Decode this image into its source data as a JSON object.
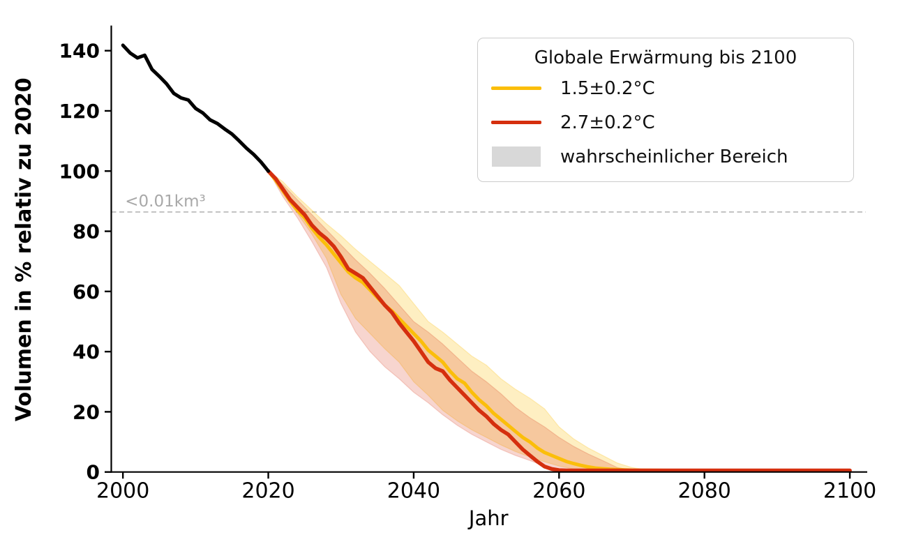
{
  "figure": {
    "xlabel": "Jahr",
    "ylabel": "Volumen in % relativ zu 2020",
    "background": "#ffffff",
    "axis_color": "#000000"
  },
  "legend": {
    "title": "Globale Erwärmung bis 2100",
    "entries": [
      {
        "label": "1.5±0.2°C",
        "swatch": "line",
        "color": "#fbbe0a"
      },
      {
        "label": "2.7±0.2°C",
        "swatch": "line",
        "color": "#d52f0e"
      },
      {
        "label": "wahrscheinlicher Bereich",
        "swatch": "patch",
        "color": "#d8d8d8"
      }
    ]
  },
  "chart_data": {
    "type": "line",
    "title": "",
    "xlabel": "Jahr",
    "ylabel": "Volumen in % relativ zu 2020",
    "xlim": [
      1998.4,
      2102.2
    ],
    "ylim": [
      0,
      147.9
    ],
    "x_ticks": [
      2000,
      2020,
      2040,
      2060,
      2080,
      2100
    ],
    "y_ticks": [
      0,
      20,
      40,
      60,
      80,
      100,
      120,
      140
    ],
    "grid": false,
    "legend_title": "Globale Erwärmung bis 2100",
    "legend_position": "upper right",
    "threshold": {
      "value": 86.4,
      "label": "<0.01km³",
      "label_color": "#a8a8a8",
      "line_color": "#b5b5b5"
    },
    "series": [
      {
        "id": "historical",
        "color": "#000000",
        "width": 5,
        "x": [
          2000,
          2001,
          2002,
          2003,
          2004,
          2005,
          2006,
          2007,
          2008,
          2009,
          2010,
          2011,
          2012,
          2013,
          2014,
          2015,
          2016,
          2017,
          2018,
          2019,
          2020
        ],
        "y": [
          141.8,
          139.2,
          137.6,
          138.5,
          133.8,
          131.5,
          129,
          125.8,
          124.3,
          123.6,
          120.8,
          119.3,
          117,
          115.8,
          114,
          112.3,
          110,
          107.6,
          105.5,
          103,
          100
        ]
      },
      {
        "id": "warming-1p5",
        "label": "1.5±0.2°C",
        "color": "#fbbe0a",
        "width": 5,
        "x": [
          2020,
          2021,
          2022,
          2023,
          2024,
          2025,
          2026,
          2027,
          2028,
          2029,
          2030,
          2031,
          2032,
          2033,
          2034,
          2035,
          2036,
          2037,
          2038,
          2039,
          2040,
          2041,
          2042,
          2043,
          2044,
          2045,
          2046,
          2047,
          2048,
          2049,
          2050,
          2051,
          2052,
          2053,
          2054,
          2055,
          2056,
          2057,
          2058,
          2059,
          2060,
          2061,
          2062,
          2063,
          2064,
          2065,
          2066,
          2067,
          2068,
          2069,
          2070,
          2075,
          2100
        ],
        "y": [
          100,
          97,
          93.5,
          90,
          87,
          84.5,
          81,
          78,
          75.5,
          72.5,
          69.5,
          66.5,
          64.5,
          63,
          60.5,
          58,
          55.5,
          53.5,
          51,
          48.5,
          46,
          43.5,
          40.5,
          38.5,
          36.5,
          33.5,
          31,
          29.5,
          26.5,
          24,
          22,
          19.5,
          17.5,
          15.5,
          13.5,
          11.5,
          10,
          8,
          6.5,
          5.5,
          4.5,
          3.5,
          2.8,
          2.2,
          1.7,
          1.3,
          1.1,
          0.9,
          0.8,
          0.7,
          0.6,
          0.5,
          0.5
        ],
        "band": {
          "fill_opacity": 0.25,
          "edge_opacity": 0.45,
          "x": [
            2020,
            2022,
            2024,
            2026,
            2028,
            2030,
            2032,
            2034,
            2036,
            2038,
            2040,
            2042,
            2044,
            2046,
            2048,
            2050,
            2052,
            2054,
            2056,
            2058,
            2060,
            2062,
            2064,
            2066,
            2068,
            2070,
            2072,
            2074
          ],
          "upper": [
            100,
            96.5,
            91.5,
            87,
            82.5,
            78.5,
            74,
            70,
            66,
            62,
            56,
            50,
            46.5,
            42.5,
            38.5,
            35.5,
            31,
            27.5,
            24.5,
            21,
            15,
            11,
            8,
            5.5,
            3,
            1.5,
            0.7,
            0.3
          ],
          "lower": [
            100,
            92.5,
            86,
            79,
            71,
            59,
            51,
            46,
            41,
            36.5,
            30,
            25.5,
            20.5,
            17,
            14,
            11.5,
            9,
            6.8,
            5,
            3.4,
            2,
            1,
            0.5,
            0.3,
            0.2,
            0.15,
            0.1,
            0.1
          ]
        }
      },
      {
        "id": "warming-2p7",
        "label": "2.7±0.2°C",
        "color": "#d52f0e",
        "width": 5.5,
        "x": [
          2020,
          2021,
          2022,
          2023,
          2024,
          2025,
          2026,
          2027,
          2028,
          2029,
          2030,
          2031,
          2032,
          2033,
          2034,
          2035,
          2036,
          2037,
          2038,
          2039,
          2040,
          2041,
          2042,
          2043,
          2044,
          2045,
          2046,
          2047,
          2048,
          2049,
          2050,
          2051,
          2052,
          2053,
          2054,
          2055,
          2056,
          2057,
          2058,
          2059,
          2060,
          2061,
          2062,
          2063,
          2064,
          2065,
          2066,
          2067,
          2068,
          2069,
          2070,
          2075,
          2100
        ],
        "y": [
          100,
          97.5,
          94,
          90.5,
          88,
          85.5,
          82,
          79.5,
          77.5,
          75,
          71.5,
          67.5,
          66,
          64.5,
          61.5,
          58.5,
          55.5,
          53,
          49.5,
          46.5,
          43.5,
          40,
          36.5,
          34.5,
          33.5,
          30.5,
          28,
          25.5,
          23,
          20.5,
          18.5,
          16,
          14,
          12.5,
          10,
          7.5,
          5.5,
          3.5,
          1.8,
          1,
          0.6,
          0.5,
          0.5,
          0.5,
          0.5,
          0.5,
          0.5,
          0.5,
          0.5,
          0.5,
          0.5,
          0.5,
          0.5
        ],
        "band": {
          "fill_opacity": 0.2,
          "edge_opacity": 0.35,
          "x": [
            2020,
            2022,
            2024,
            2026,
            2028,
            2030,
            2032,
            2034,
            2036,
            2038,
            2040,
            2042,
            2044,
            2046,
            2048,
            2050,
            2052,
            2054,
            2056,
            2058,
            2060,
            2062,
            2064,
            2066,
            2068,
            2070,
            2072,
            2074
          ],
          "upper": [
            100,
            95.5,
            90.5,
            85.5,
            80.5,
            75.5,
            70.5,
            66,
            61,
            55.5,
            50,
            46.5,
            42.5,
            38,
            33.5,
            30,
            26,
            21.5,
            18,
            15,
            11.5,
            8.5,
            6,
            3.8,
            1.5,
            0.6,
            0.3,
            0.2
          ],
          "lower": [
            100,
            91.5,
            84.5,
            76.5,
            68,
            56,
            46.5,
            40,
            35,
            31,
            26.5,
            23,
            19,
            15.5,
            12.5,
            10,
            7.5,
            5.5,
            3.8,
            2,
            0.8,
            0.3,
            0.15,
            0.1,
            0.1,
            0.1,
            0.1,
            0.1
          ]
        }
      }
    ]
  }
}
